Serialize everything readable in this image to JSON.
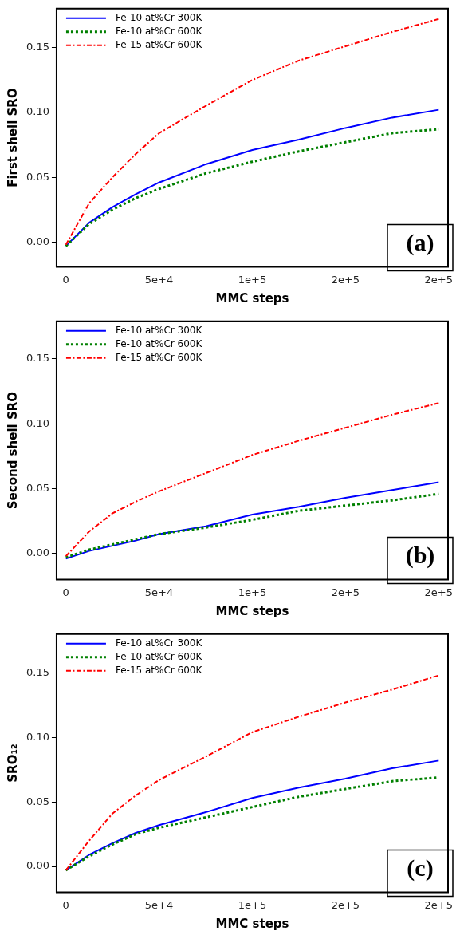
{
  "chart_data": [
    {
      "type": "line",
      "ylabel": "First shell SRO",
      "xlabel": "MMC steps",
      "x": [
        0,
        12500,
        25000,
        37500,
        50000,
        75000,
        100000,
        125000,
        150000,
        175000,
        200000
      ],
      "xlim": [
        -5000,
        205000
      ],
      "xticks": [
        {
          "value": 0,
          "label": "0"
        },
        {
          "value": 50000,
          "label": "5e+4"
        },
        {
          "value": 100000,
          "label": "1e+5"
        },
        {
          "value": 150000,
          "label": "2e+5"
        },
        {
          "value": 200000,
          "label": "2e+5"
        }
      ],
      "ylim": [
        -0.019,
        0.18
      ],
      "yticks": [
        {
          "value": 0,
          "label": "0.00"
        },
        {
          "value": 0.05,
          "label": "0.05"
        },
        {
          "value": 0.1,
          "label": "0.10"
        },
        {
          "value": 0.15,
          "label": "0.15"
        }
      ],
      "grid": false,
      "legend": "top left",
      "annotations": [
        "(a)"
      ],
      "series": [
        {
          "name": "Fe-10 at%Cr 300K",
          "color": "#0000ff",
          "line_style": "solid",
          "values": [
            -0.003,
            0.015,
            0.027,
            0.037,
            0.046,
            0.06,
            0.071,
            0.079,
            0.088,
            0.096,
            0.102
          ]
        },
        {
          "name": "Fe-10 at%Cr 600K",
          "color": "#008000",
          "line_style": "dotted",
          "values": [
            -0.003,
            0.014,
            0.025,
            0.034,
            0.041,
            0.053,
            0.062,
            0.07,
            0.077,
            0.084,
            0.087
          ]
        },
        {
          "name": "Fe-15 at%Cr 600K",
          "color": "#ff0000",
          "line_style": "dashed",
          "values": [
            -0.002,
            0.03,
            0.05,
            0.068,
            0.084,
            0.105,
            0.125,
            0.14,
            0.151,
            0.162,
            0.172
          ]
        }
      ]
    },
    {
      "type": "line",
      "ylabel": "Second shell SRO",
      "xlabel": "MMC steps",
      "x": [
        0,
        12500,
        25000,
        37500,
        50000,
        75000,
        100000,
        125000,
        150000,
        175000,
        200000
      ],
      "xlim": [
        -5000,
        205000
      ],
      "xticks": [
        {
          "value": 0,
          "label": "0"
        },
        {
          "value": 50000,
          "label": "5e+4"
        },
        {
          "value": 100000,
          "label": "1e+5"
        },
        {
          "value": 150000,
          "label": "2e+5"
        },
        {
          "value": 200000,
          "label": "2e+5"
        }
      ],
      "ylim": [
        -0.02,
        0.179
      ],
      "yticks": [
        {
          "value": 0,
          "label": "0.00"
        },
        {
          "value": 0.05,
          "label": "0.05"
        },
        {
          "value": 0.1,
          "label": "0.10"
        },
        {
          "value": 0.15,
          "label": "0.15"
        }
      ],
      "grid": false,
      "legend": "top left",
      "annotations": [
        "(b)"
      ],
      "series": [
        {
          "name": "Fe-10 at%Cr 300K",
          "color": "#0000ff",
          "line_style": "solid",
          "values": [
            -0.004,
            0.002,
            0.006,
            0.01,
            0.015,
            0.021,
            0.03,
            0.036,
            0.043,
            0.049,
            0.055
          ]
        },
        {
          "name": "Fe-10 at%Cr 600K",
          "color": "#008000",
          "line_style": "dotted",
          "values": [
            -0.003,
            0.003,
            0.007,
            0.011,
            0.015,
            0.02,
            0.026,
            0.033,
            0.037,
            0.041,
            0.046
          ]
        },
        {
          "name": "Fe-15 at%Cr 600K",
          "color": "#ff0000",
          "line_style": "dashed",
          "values": [
            -0.002,
            0.017,
            0.031,
            0.04,
            0.048,
            0.062,
            0.076,
            0.087,
            0.097,
            0.107,
            0.116
          ]
        }
      ]
    },
    {
      "type": "line",
      "ylabel": "SRO₁₂",
      "xlabel": "MMC steps",
      "x": [
        0,
        12500,
        25000,
        37500,
        50000,
        75000,
        100000,
        125000,
        150000,
        175000,
        200000
      ],
      "xlim": [
        -5000,
        205000
      ],
      "xticks": [
        {
          "value": 0,
          "label": "0"
        },
        {
          "value": 50000,
          "label": "5e+4"
        },
        {
          "value": 100000,
          "label": "1e+5"
        },
        {
          "value": 150000,
          "label": "2e+5"
        },
        {
          "value": 200000,
          "label": "2e+5"
        }
      ],
      "ylim": [
        -0.02,
        0.18
      ],
      "yticks": [
        {
          "value": 0,
          "label": "0.00"
        },
        {
          "value": 0.05,
          "label": "0.05"
        },
        {
          "value": 0.1,
          "label": "0.10"
        },
        {
          "value": 0.15,
          "label": "0.15"
        }
      ],
      "grid": false,
      "legend": "top left",
      "annotations": [
        "(c)"
      ],
      "series": [
        {
          "name": "Fe-10 at%Cr 300K",
          "color": "#0000ff",
          "line_style": "solid",
          "values": [
            -0.003,
            0.009,
            0.018,
            0.026,
            0.032,
            0.042,
            0.053,
            0.061,
            0.068,
            0.076,
            0.082
          ]
        },
        {
          "name": "Fe-10 at%Cr 600K",
          "color": "#008000",
          "line_style": "dotted",
          "values": [
            -0.003,
            0.008,
            0.017,
            0.025,
            0.03,
            0.038,
            0.046,
            0.054,
            0.06,
            0.066,
            0.069
          ]
        },
        {
          "name": "Fe-15 at%Cr 600K",
          "color": "#ff0000",
          "line_style": "dashed",
          "values": [
            -0.003,
            0.02,
            0.041,
            0.055,
            0.067,
            0.085,
            0.104,
            0.116,
            0.127,
            0.137,
            0.148
          ]
        }
      ]
    }
  ]
}
